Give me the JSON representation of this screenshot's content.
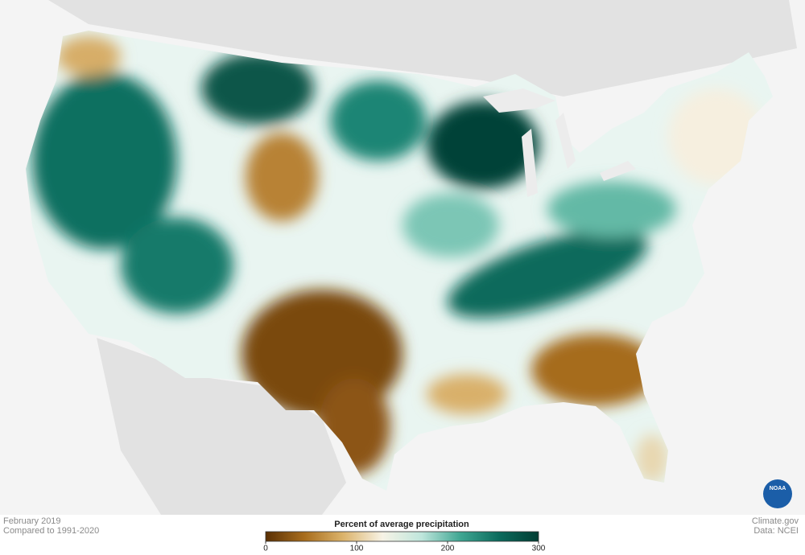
{
  "map": {
    "date": "February 2019",
    "baseline": "Compared to 1991-2020",
    "source": "Climate.gov",
    "data_source": "Data: NCEI",
    "logo": "NOAA",
    "legend": {
      "title": "Percent of average precipitation",
      "range": [
        0,
        300
      ],
      "ticks": [
        0,
        100,
        200,
        300
      ],
      "colors": [
        "#5a3004",
        "#a86d1d",
        "#dcb46c",
        "#f7f3e6",
        "#bfe6dc",
        "#3fa692",
        "#0b6a5c",
        "#013d33"
      ]
    }
  }
}
